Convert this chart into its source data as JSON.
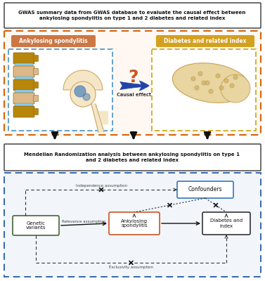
{
  "title_text": "GWAS summary data from GWAS database to evaluate the causal effect between\nankylosing spondylitis on type 1 and 2 diabetes and related index",
  "mr_title": "Mendelian Randomization analysis between ankylosing spondylitis on type 1\nand 2 diabetes and related index",
  "label_as": "Ankylosing spondylitis",
  "label_diab": "Diabetes and related index",
  "label_causal": "Causal effect",
  "label_independence": "Independence assumption",
  "label_relevance": "Relevance assumption",
  "label_exclusivity": "Exclusivity assumption",
  "label_confounders": "Confounders",
  "label_genetic": "Genetic\nvariants",
  "label_as2": "Ankylosing\nspondylitis",
  "label_diab2": "Diabetes and\nindex",
  "bg_color": "#ffffff",
  "top_box_border": "#333333",
  "orange_border": "#D4640A",
  "as_label_bg": "#CC7744",
  "diab_label_bg": "#D4A020",
  "as_img_border": "#5599CC",
  "diab_img_border": "#CCAA22",
  "mr_box_border": "#333333",
  "dash_box_border": "#3366AA",
  "genetic_box_border": "#446633",
  "as2_box_border": "#CC5522",
  "diab2_box_border": "#333333",
  "confounders_box_border": "#3377BB",
  "arrow_color": "#2244AA",
  "dashed_color": "#333333",
  "question_color": "#CC5522",
  "spine_colors": [
    "#B8860B",
    "#DEB887",
    "#B8860B",
    "#DEB887",
    "#B8860B"
  ],
  "disc_color": "#87CEEB",
  "bone_color": "#F5E6C8",
  "panc_color": "#E8D5A0",
  "panc_spot": "#C4A050"
}
